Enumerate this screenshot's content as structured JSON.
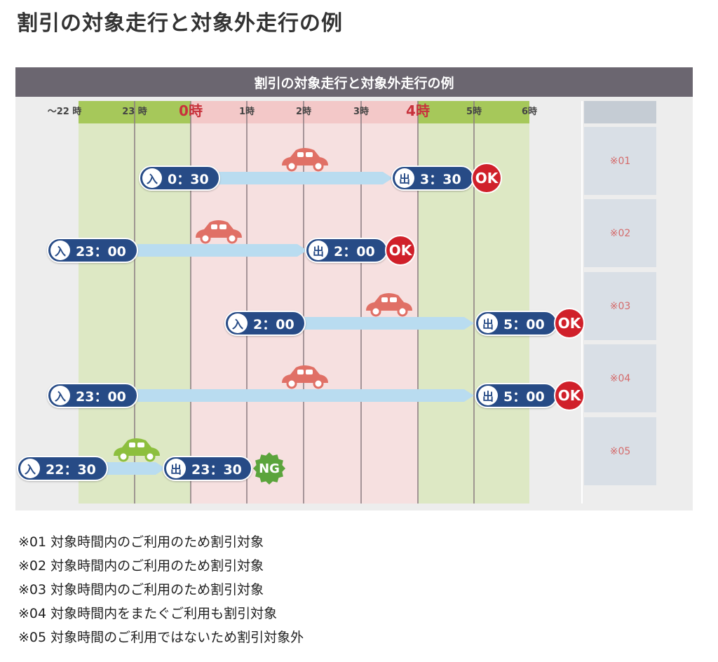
{
  "page_title": "割引の対象走行と対象外走行の例",
  "figure": {
    "header": "割引の対象走行と対象外走行の例",
    "hour_labels": [
      "～22 時",
      "23 時",
      "0時",
      "1時",
      "2時",
      "3時",
      "4時",
      "5時",
      "6時"
    ],
    "colors": {
      "green_zone": "#dde8c4",
      "pink_zone": "#f6e0e0",
      "green_bar": "#a6c85a",
      "pink_bar": "#f3c8c8",
      "hour_accent": "#c8323c",
      "arrow": "#b9dcf0",
      "pill": "#274b86",
      "ok": "#d0202a",
      "ng": "#5ba43c",
      "car_red": "#e07066",
      "car_green": "#8dbf3e"
    },
    "trips": [
      {
        "id": "※01",
        "entry_label": "入",
        "entry_time": "0：30",
        "exit_label": "出",
        "exit_time": "3：30",
        "result": "OK",
        "car_color": "red"
      },
      {
        "id": "※02",
        "entry_label": "入",
        "entry_time": "23：00",
        "exit_label": "出",
        "exit_time": "2：00",
        "result": "OK",
        "car_color": "red"
      },
      {
        "id": "※03",
        "entry_label": "入",
        "entry_time": "2：00",
        "exit_label": "出",
        "exit_time": "5：00",
        "result": "OK",
        "car_color": "red"
      },
      {
        "id": "※04",
        "entry_label": "入",
        "entry_time": "23：00",
        "exit_label": "出",
        "exit_time": "5：00",
        "result": "OK",
        "car_color": "red"
      },
      {
        "id": "※05",
        "entry_label": "入",
        "entry_time": "22：30",
        "exit_label": "出",
        "exit_time": "23：30",
        "result": "NG",
        "car_color": "green"
      }
    ]
  },
  "notes": [
    "※01 対象時間内のご利用のため割引対象",
    "※02 対象時間内のご利用のため割引対象",
    "※03 対象時間内のご利用のため割引対象",
    "※04 対象時間内をまたぐご利用も割引対象",
    "※05 対象時間のご利用ではないため割引対象外"
  ]
}
